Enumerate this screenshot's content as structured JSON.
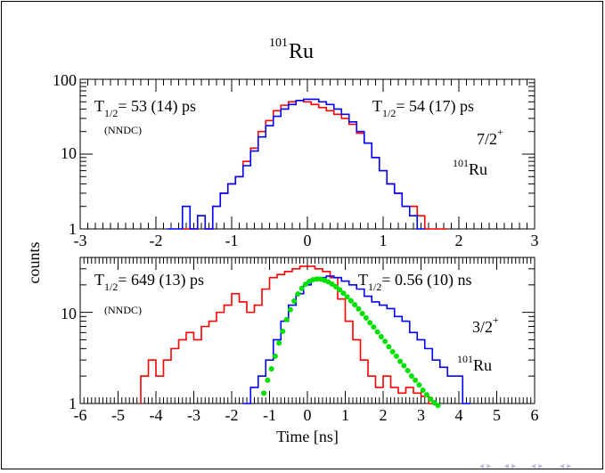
{
  "title": {
    "superscript": "101",
    "main": "Ru"
  },
  "colors": {
    "red": "#ff0000",
    "blue": "#0000ff",
    "green": "#00e000",
    "axis": "#000000"
  },
  "y_axis_label": "counts",
  "panels": [
    {
      "id": "top",
      "x_ticks": [
        "-3",
        "-2",
        "-1",
        "0",
        "1",
        "2",
        "3"
      ],
      "y_ticks": [
        "1",
        "10",
        "100"
      ],
      "left_label": {
        "T": "T",
        "sub": "1/2",
        "val": "= 53 (14) ps",
        "src": "(NNDC)"
      },
      "right_label": {
        "T": "T",
        "sub": "1/2",
        "val": "= 54 (17) ps"
      },
      "spin": {
        "val": "7/2",
        "sup": "+"
      },
      "nucleus": {
        "sup": "101",
        "name": "Ru"
      }
    },
    {
      "id": "bottom",
      "x_ticks": [
        "-6",
        "-5",
        "-4",
        "-3",
        "-2",
        "-1",
        "0",
        "1",
        "2",
        "3",
        "4",
        "5",
        "6"
      ],
      "y_ticks": [
        "1",
        "10"
      ],
      "x_label": "Time [ns]",
      "left_label": {
        "T": "T",
        "sub": "1/2",
        "val": "= 649 (13) ps",
        "src": "(NNDC)"
      },
      "right_label": {
        "T": "T",
        "sub": "1/2",
        "val": "=  0.56 (10) ns"
      },
      "spin": {
        "val": "3/2",
        "sup": "+"
      },
      "nucleus": {
        "sup": "101",
        "name": "Ru"
      }
    }
  ],
  "chart_data": [
    {
      "type": "line",
      "xlim": [
        -3,
        3
      ],
      "ylim": [
        1,
        100
      ],
      "yscale": "log",
      "series": [
        {
          "color": "red",
          "x": [
            -1.6,
            -1.5,
            -1.4,
            -1.3,
            -1.2,
            -1.1,
            -1.0,
            -0.9,
            -0.8,
            -0.7,
            -0.6,
            -0.5,
            -0.4,
            -0.3,
            -0.2,
            -0.1,
            0.0,
            0.1,
            0.2,
            0.3,
            0.4,
            0.5,
            0.6,
            0.7,
            0.8,
            0.9,
            1.0,
            1.1,
            1.2,
            1.3,
            1.4,
            1.5,
            1.6,
            1.7,
            1.8
          ],
          "y": [
            1,
            1,
            1.5,
            1,
            2,
            3,
            4,
            5,
            8,
            12,
            20,
            28,
            38,
            45,
            50,
            52,
            50,
            46,
            42,
            38,
            34,
            30,
            25,
            19,
            14,
            9,
            6,
            4,
            3,
            2,
            2,
            1.5,
            1,
            1,
            1
          ]
        },
        {
          "color": "blue",
          "x": [
            -1.8,
            -1.7,
            -1.6,
            -1.5,
            -1.4,
            -1.3,
            -1.2,
            -1.1,
            -1.0,
            -0.9,
            -0.8,
            -0.7,
            -0.6,
            -0.5,
            -0.4,
            -0.3,
            -0.2,
            -0.1,
            0.0,
            0.1,
            0.2,
            0.3,
            0.4,
            0.5,
            0.6,
            0.7,
            0.8,
            0.9,
            1.0,
            1.1,
            1.2,
            1.3,
            1.4,
            1.5
          ],
          "y": [
            1,
            1,
            2,
            1,
            1.5,
            1,
            2,
            3,
            4,
            5,
            7,
            11,
            17,
            24,
            32,
            40,
            46,
            52,
            54,
            54,
            50,
            46,
            40,
            34,
            27,
            20,
            14,
            9,
            6,
            4,
            3,
            2,
            1.5,
            1
          ]
        }
      ]
    },
    {
      "type": "line",
      "xlim": [
        -6,
        6
      ],
      "ylim": [
        1,
        40
      ],
      "yscale": "log",
      "series": [
        {
          "color": "red",
          "x": [
            -4.3,
            -4.1,
            -3.9,
            -3.7,
            -3.5,
            -3.3,
            -3.1,
            -2.9,
            -2.7,
            -2.5,
            -2.3,
            -2.1,
            -1.9,
            -1.7,
            -1.5,
            -1.3,
            -1.1,
            -0.9,
            -0.7,
            -0.5,
            -0.3,
            -0.1,
            0.1,
            0.3,
            0.5,
            0.7,
            0.9,
            1.1,
            1.3,
            1.5,
            1.7,
            1.9,
            2.1,
            2.3,
            2.5,
            2.7,
            2.9,
            3.1,
            3.3
          ],
          "y": [
            2,
            3,
            2,
            3,
            4,
            5,
            6,
            5,
            7,
            8,
            10,
            12,
            16,
            13,
            10,
            12,
            18,
            24,
            26,
            28,
            30,
            32,
            32,
            30,
            28,
            24,
            14,
            8,
            5,
            3,
            2,
            1.5,
            2,
            1.5,
            1.3,
            1.5,
            1.3,
            1.2,
            1
          ]
        },
        {
          "color": "blue",
          "x": [
            -1.6,
            -1.4,
            -1.2,
            -1.0,
            -0.8,
            -0.6,
            -0.4,
            -0.2,
            0.0,
            0.2,
            0.4,
            0.6,
            0.8,
            1.0,
            1.2,
            1.4,
            1.6,
            1.8,
            2.0,
            2.2,
            2.4,
            2.6,
            2.8,
            3.0,
            3.2,
            3.4,
            3.6,
            3.8,
            4.0,
            4.2
          ],
          "y": [
            1,
            1.5,
            2,
            3,
            5,
            8,
            12,
            16,
            20,
            23,
            24,
            25,
            24,
            22,
            20,
            18,
            15,
            13,
            12,
            11,
            9,
            8,
            6,
            5,
            4,
            3,
            2.5,
            2,
            2,
            1
          ]
        },
        {
          "color": "green",
          "x": [
            -1.15,
            -1.05,
            -0.95,
            -0.85,
            -0.75,
            -0.65,
            -0.55,
            -0.45,
            -0.35,
            -0.25,
            -0.15,
            -0.05,
            0.05,
            0.15,
            0.25,
            0.35,
            0.45,
            0.55,
            0.65,
            0.75,
            0.85,
            0.95,
            1.05,
            1.15,
            1.25,
            1.35,
            1.45,
            1.55,
            1.65,
            1.75,
            1.85,
            1.95,
            2.05,
            2.15,
            2.25,
            2.35,
            2.45,
            2.55,
            2.65,
            2.75,
            2.85,
            2.95,
            3.05,
            3.15,
            3.25,
            3.35,
            3.45
          ],
          "y": [
            1.3,
            1.8,
            2.4,
            3.3,
            4.6,
            6.2,
            8.3,
            10.7,
            13.3,
            15.9,
            18.3,
            20.3,
            21.8,
            22.8,
            23.2,
            23.1,
            22.5,
            21.6,
            20.4,
            19.1,
            17.7,
            16.2,
            14.8,
            13.4,
            12.1,
            10.9,
            9.7,
            8.7,
            7.7,
            6.9,
            6.1,
            5.4,
            4.8,
            4.2,
            3.7,
            3.3,
            2.9,
            2.6,
            2.3,
            2.0,
            1.8,
            1.6,
            1.4,
            1.25,
            1.12,
            1.02,
            0.95
          ]
        }
      ]
    }
  ]
}
